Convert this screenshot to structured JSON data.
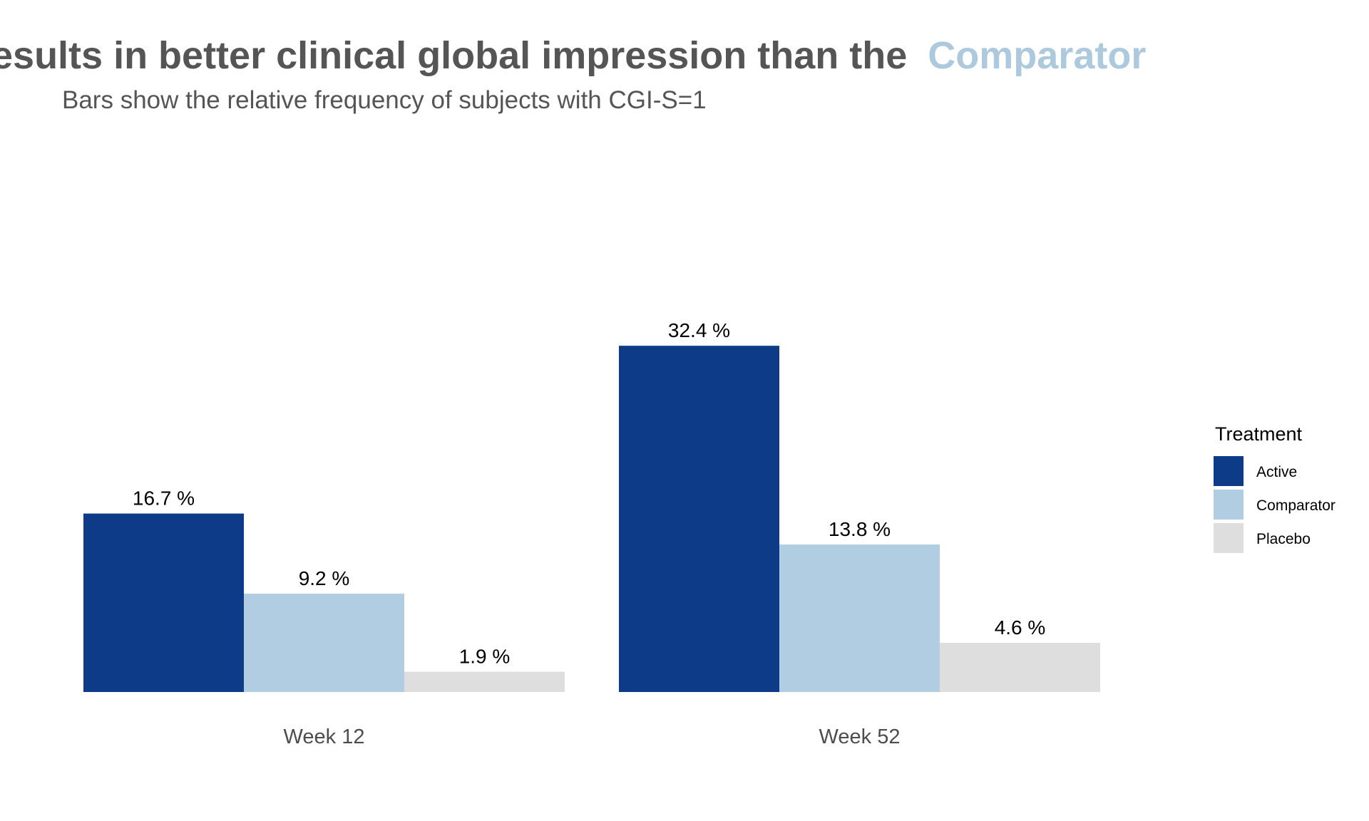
{
  "chart_data": {
    "type": "bar",
    "title": {
      "visible_text": "esults in better clinical global impression than the",
      "highlight": "Comparator"
    },
    "subtitle": "Bars show the relative frequency of subjects with CGI-S=1",
    "categories": [
      "Week 12",
      "Week 52"
    ],
    "series": [
      {
        "name": "Active",
        "color": "#0d3b87",
        "values": [
          16.7,
          32.4
        ],
        "labels": [
          "16.7 %",
          "32.4 %"
        ]
      },
      {
        "name": "Comparator",
        "color": "#b0cde1",
        "values": [
          9.2,
          13.8
        ],
        "labels": [
          "9.2 %",
          "13.8 %"
        ]
      },
      {
        "name": "Placebo",
        "color": "#dedede",
        "values": [
          1.9,
          4.6
        ],
        "labels": [
          "1.9 %",
          "4.6 %"
        ]
      }
    ],
    "ylim": [
      0,
      35
    ],
    "grid": false,
    "legend": {
      "title": "Treatment",
      "position": "right"
    },
    "colors": {
      "title": "#555555",
      "subtitle": "#555555",
      "highlight": "#adc9dd"
    }
  }
}
